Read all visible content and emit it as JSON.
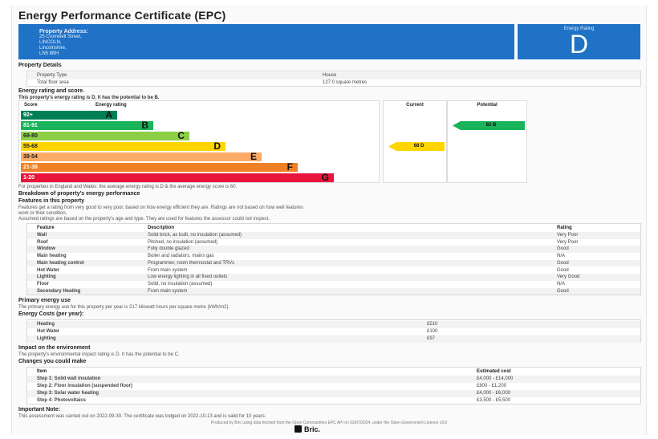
{
  "title": "Energy Performance Certificate (EPC)",
  "address": {
    "label": "Property Address:",
    "lines": [
      "25 Cromwell Street,",
      "LINCOLN,",
      "Lincolnshire,",
      "LN5 8BH"
    ]
  },
  "rating_box": {
    "label": "Energy Rating",
    "value": "D"
  },
  "property_details": {
    "heading": "Property Details",
    "rows": [
      {
        "k": "Property Type",
        "v": "House"
      },
      {
        "k": "Total floor area",
        "v": "127.0 square metres"
      }
    ]
  },
  "energy": {
    "heading": "Energy rating and score.",
    "summary": "This property's energy rating is D. It has the potential to be B.",
    "col_score": "Score",
    "col_rating": "Energy rating",
    "col_current": "Current",
    "col_potential": "Potential",
    "current_label": "68  D",
    "potential_label": "82  B",
    "note": "For properties in England and Wales: the average energy rating is D & the average energy score is 60."
  },
  "chart_data": {
    "type": "bar",
    "categories": [
      "92+",
      "81-91",
      "69-80",
      "55-68",
      "39-54",
      "21-38",
      "1-20"
    ],
    "letters": [
      "A",
      "B",
      "C",
      "D",
      "E",
      "F",
      "G"
    ],
    "values": [
      1,
      2,
      3,
      4,
      5,
      6,
      7
    ],
    "colors": [
      "#008054",
      "#19b459",
      "#8dce46",
      "#ffd500",
      "#fcaa65",
      "#ef8023",
      "#e9153b"
    ],
    "current": {
      "score": 68,
      "rating": "D",
      "band_index": 3,
      "color": "#ffd500"
    },
    "potential": {
      "score": 82,
      "rating": "B",
      "band_index": 1,
      "color": "#19b459"
    }
  },
  "breakdown": {
    "heading": "Breakdown of property's energy performance",
    "sub": "Features in this property",
    "para1": "Features get a rating from very good to very poor, based on how energy efficient they are. Ratings are not based on how well features",
    "para1b": "work or their condition.",
    "para2": "Assumed ratings are based on the property's age and type. They are used for features the assessor could not inspect.",
    "headers": [
      "Feature",
      "Description",
      "Rating"
    ],
    "rows": [
      [
        "Wall",
        "Solid brick, as built, no insulation (assumed)",
        "Very Poor"
      ],
      [
        "Roof",
        "Pitched, no insulation (assumed)",
        "Very Poor"
      ],
      [
        "Window",
        "Fully double glazed",
        "Good"
      ],
      [
        "Main heating",
        "Boiler and radiators, mains gas",
        "N/A"
      ],
      [
        "Main heating control",
        "Programmer, room thermostat and TRVs",
        "Good"
      ],
      [
        "Hot Water",
        "From main system",
        "Good"
      ],
      [
        "Lighting",
        "Low energy lighting in all fixed outlets",
        "Very Good"
      ],
      [
        "Floor",
        "Solid, no insulation (assumed)",
        "N/A"
      ],
      [
        "Secondary Heating",
        "From main system",
        "Good"
      ]
    ]
  },
  "primary": {
    "heading": "Primary energy use",
    "text": "The primary energy use for this property per year is 217 kilowatt hours per square metre (kWh/m2)."
  },
  "costs": {
    "heading": "Energy Costs (per year):",
    "rows": [
      {
        "k": "Heating",
        "v": "£510"
      },
      {
        "k": "Hot Water",
        "v": "£100"
      },
      {
        "k": "Lighting",
        "v": "£97"
      }
    ]
  },
  "impact": {
    "heading": "Impact on the environment",
    "text": "The property's environmental impact rating is D. It has the potential to be C."
  },
  "changes": {
    "heading": "Changes you could make",
    "headers": [
      "Item",
      "Estimated cost"
    ],
    "rows": [
      [
        "Step 1: Solid wall insulation",
        "£4,000 - £14,000"
      ],
      [
        "Step 2: Floor insulation (suspended floor)",
        "£800 - £1,200"
      ],
      [
        "Step 3: Solar water heating",
        "£4,000 - £6,000"
      ],
      [
        "Step 4: Photovoltaics",
        "£3,500 - £5,500"
      ]
    ]
  },
  "note": {
    "heading": "Important Note:",
    "text": "This assessment was carried out on 2022-09-30. The certificate was lodged on 2022-10-13 and is valid for 10 years."
  },
  "footer": {
    "text": "Produced by Bric using data fetched from the Open Communities EPC API on 03/07/2024, under the Open Government Licence v3.0",
    "logo": "Bric."
  }
}
